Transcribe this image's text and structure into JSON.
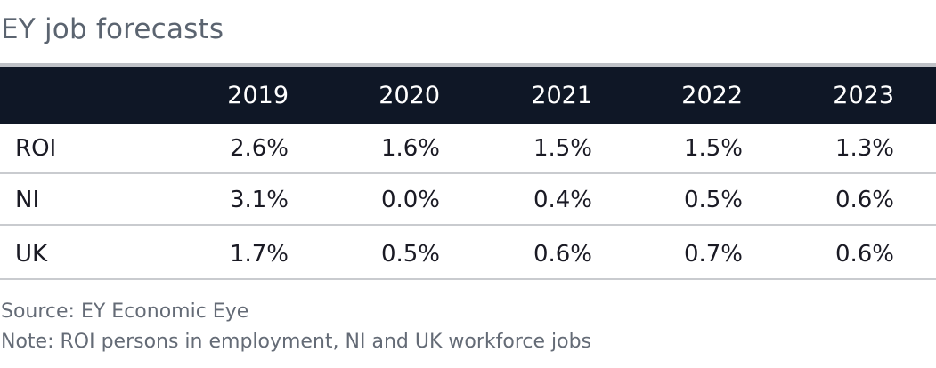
{
  "title": "EY job forecasts",
  "table": {
    "columns": [
      "2019",
      "2020",
      "2021",
      "2022",
      "2023"
    ],
    "rows": [
      {
        "label": "ROI",
        "values": [
          "2.6%",
          "1.6%",
          "1.5%",
          "1.5%",
          "1.3%"
        ]
      },
      {
        "label": "NI",
        "values": [
          "3.1%",
          "0.0%",
          "0.4%",
          "0.5%",
          "0.6%"
        ]
      },
      {
        "label": "UK",
        "values": [
          "1.7%",
          "0.5%",
          "0.6%",
          "0.7%",
          "0.6%"
        ]
      }
    ]
  },
  "footer": {
    "source": "Source: EY Economic Eye",
    "note": "Note: ROI persons in employment, NI and UK workforce jobs"
  },
  "colors": {
    "header_background": "#0f1726",
    "header_text": "#ffffff",
    "title_text": "#5b6470",
    "rule": "#c9cbcf"
  }
}
